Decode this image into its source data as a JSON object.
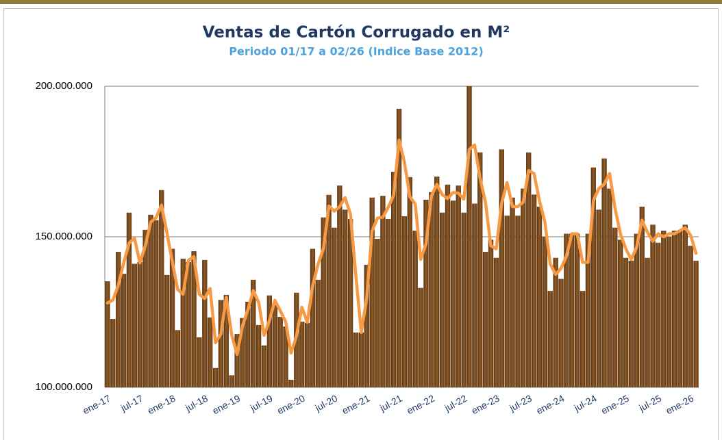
{
  "chart_data": {
    "type": "bar",
    "title": "Ventas de Cartón Corrugado en M²",
    "subtitle": "Periodo 01/17 a 02/26 (Indice Base 2012)",
    "categories": [
      "ene-17",
      null,
      null,
      null,
      null,
      null,
      "jul-17",
      null,
      null,
      null,
      null,
      null,
      "ene-18",
      null,
      null,
      null,
      null,
      null,
      "jul-18",
      null,
      null,
      null,
      null,
      null,
      "ene-19",
      null,
      null,
      null,
      null,
      null,
      "jul-19",
      null,
      null,
      null,
      null,
      null,
      "ene-20",
      null,
      null,
      null,
      null,
      null,
      "jul-20",
      null,
      null,
      null,
      null,
      null,
      "ene-21",
      null,
      null,
      null,
      null,
      null,
      "jul-21",
      null,
      null,
      null,
      null,
      null,
      "ene-22",
      null,
      null,
      null,
      null,
      null,
      "jul-22",
      null,
      null,
      null,
      null,
      null,
      "ene-23",
      null,
      null,
      null,
      null,
      null,
      "jul-23",
      null,
      null,
      null,
      null,
      null,
      "ene-24",
      null,
      null,
      null,
      null,
      null,
      "jul-24",
      null,
      null,
      null,
      null,
      null,
      "ene-25",
      null,
      null,
      null,
      null,
      null,
      "jul-25",
      null,
      null,
      null,
      null,
      null,
      "ene-26",
      null
    ],
    "series": [
      {
        "type": "bar",
        "color": "#7b4a1e",
        "values": [
          135200000,
          122700000,
          145000000,
          137700000,
          158000000,
          141000000,
          141600000,
          152300000,
          157300000,
          155500000,
          165500000,
          137300000,
          146000000,
          119000000,
          142700000,
          141600000,
          145200000,
          116600000,
          142300000,
          123200000,
          106400000,
          129000000,
          130700000,
          104000000,
          117700000,
          123000000,
          128400000,
          135700000,
          120700000,
          113900000,
          130500000,
          127300000,
          123400000,
          120200000,
          102500000,
          131400000,
          121800000,
          121400000,
          146000000,
          135700000,
          156400000,
          163900000,
          153000000,
          167000000,
          159000000,
          155900000,
          118200000,
          118200000,
          140700000,
          163000000,
          149300000,
          163600000,
          155900000,
          171600000,
          192500000,
          156800000,
          169800000,
          152000000,
          133000000,
          162300000,
          164800000,
          170000000,
          158000000,
          167300000,
          162000000,
          167000000,
          158000000,
          200000000,
          161000000,
          178000000,
          145000000,
          149000000,
          143000000,
          179000000,
          157000000,
          163000000,
          157000000,
          166000000,
          178000000,
          164000000,
          160000000,
          150000000,
          132000000,
          143000000,
          136000000,
          151000000,
          151000000,
          151000000,
          132000000,
          151000000,
          173000000,
          159000000,
          176000000,
          166000000,
          153000000,
          149000000,
          143000000,
          142000000,
          151000000,
          160000000,
          143000000,
          154000000,
          148000000,
          152000000,
          150000000,
          152000000,
          152000000,
          154000000,
          147000000,
          142000000
        ]
      },
      {
        "type": "line",
        "color": "#f79a45",
        "values": [
          128000000,
          129000000,
          133900000,
          141400000,
          147900000,
          149500000,
          141300000,
          147000000,
          154800000,
          156400000,
          160500000,
          151400000,
          141700000,
          132500000,
          130900000,
          142200000,
          143400000,
          130900000,
          129500000,
          132800000,
          114800000,
          117700000,
          129900000,
          117400000,
          110900000,
          120400000,
          125700000,
          132100000,
          128200000,
          117300000,
          122200000,
          128900000,
          125400000,
          121800000,
          111400000,
          117000000,
          126600000,
          121600000,
          133700000,
          140900000,
          146100000,
          160200000,
          158500000,
          160000000,
          163000000,
          157500000,
          137100000,
          118200000,
          129500000,
          151900000,
          156200000,
          156500000,
          159800000,
          163800000,
          182100000,
          174700000,
          163300000,
          160900000,
          142500000,
          147700000,
          163600000,
          167400000,
          164000000,
          162700000,
          164700000,
          164500000,
          162500000,
          179000000,
          180500000,
          169500000,
          161500000,
          147000000,
          146000000,
          161000000,
          168000000,
          160000000,
          160000000,
          161500000,
          172000000,
          171000000,
          162000000,
          155000000,
          141000000,
          137500000,
          139500000,
          143500000,
          151000000,
          151000000,
          141500000,
          141500000,
          162000000,
          166000000,
          167500000,
          171000000,
          159500000,
          151000000,
          146000000,
          142500000,
          146500000,
          155500000,
          151500000,
          148500000,
          151000000,
          150000000,
          151000000,
          151000000,
          152000000,
          153000000,
          150500000,
          144500000
        ]
      }
    ],
    "ylim": [
      100000000,
      200000000
    ],
    "yticks": [
      {
        "value": 100000000,
        "label": "100.000.000"
      },
      {
        "value": 150000000,
        "label": "150.000.000"
      },
      {
        "value": 200000000,
        "label": "200.000.000"
      }
    ],
    "grid": true
  }
}
